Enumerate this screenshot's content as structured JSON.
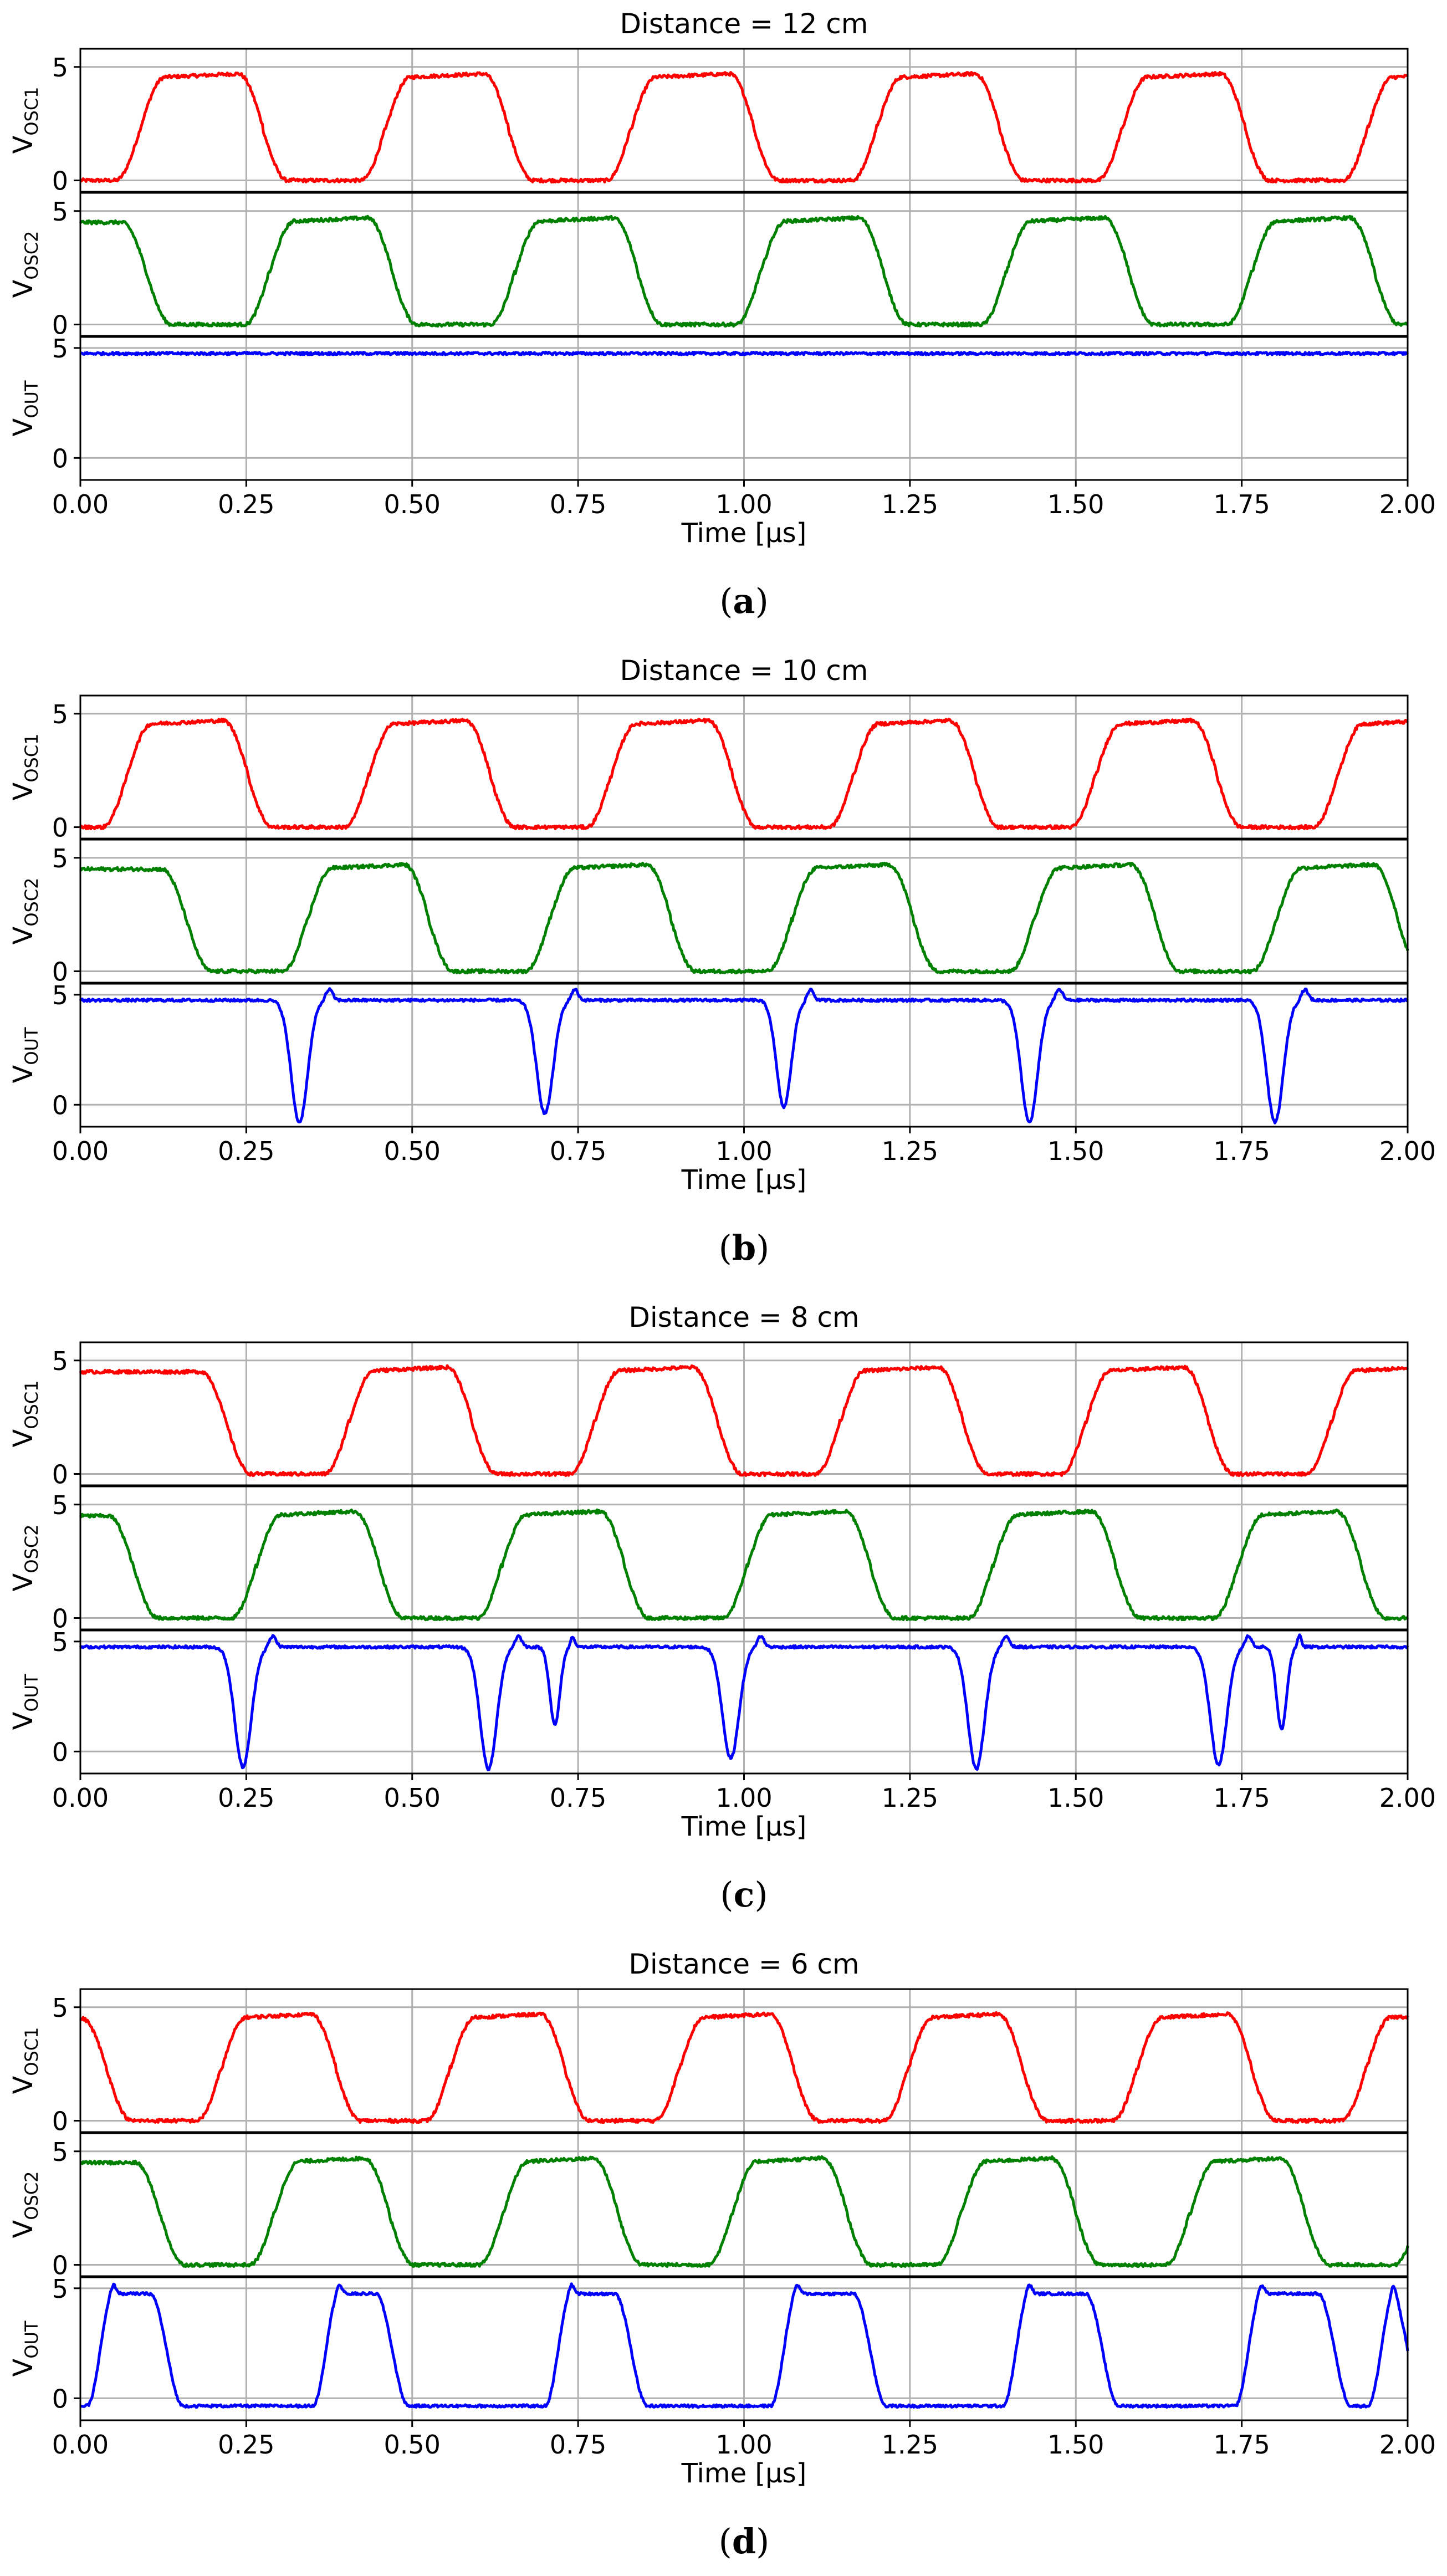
{
  "figure": {
    "panels": [
      {
        "caption_letter": "a",
        "title": "Distance = 12 cm",
        "xlabel": "Time [μs]",
        "x_ticks": [
          "0.00",
          "0.25",
          "0.50",
          "0.75",
          "1.00",
          "1.25",
          "1.50",
          "1.75",
          "2.00"
        ],
        "xlim": [
          0,
          2.0
        ],
        "subplots": [
          {
            "name": "VOSC1",
            "ylabel_main": "V",
            "ylabel_sub": "OSC1",
            "color": "#ff0000",
            "ylim": [
              -0.5,
              5.8
            ],
            "y_ticks": [
              "0",
              "5"
            ],
            "wave": {
              "type": "square",
              "period": 0.37,
              "transitions_first": 0.09,
              "start_level": "low"
            }
          },
          {
            "name": "VOSC2",
            "ylabel_main": "V",
            "ylabel_sub": "OSC2",
            "color": "#008000",
            "ylim": [
              -0.5,
              5.8
            ],
            "y_ticks": [
              "0",
              "5"
            ],
            "wave": {
              "type": "square",
              "period": 0.37,
              "transitions_first": 0.1,
              "start_level": "high"
            }
          },
          {
            "name": "VOUT",
            "ylabel_main": "V",
            "ylabel_sub": "OUT",
            "color": "#0000ff",
            "ylim": [
              -1.0,
              5.5
            ],
            "y_ticks": [
              "0",
              "5"
            ],
            "wave": {
              "type": "flat",
              "level": 4.75
            }
          }
        ]
      },
      {
        "caption_letter": "b",
        "title": "Distance = 10 cm",
        "xlabel": "Time [μs]",
        "x_ticks": [
          "0.00",
          "0.25",
          "0.50",
          "0.75",
          "1.00",
          "1.25",
          "1.50",
          "1.75",
          "2.00"
        ],
        "xlim": [
          0,
          2.0
        ],
        "subplots": [
          {
            "name": "VOSC1",
            "ylabel_main": "V",
            "ylabel_sub": "OSC1",
            "color": "#ff0000",
            "ylim": [
              -0.5,
              5.8
            ],
            "y_ticks": [
              "0",
              "5"
            ],
            "wave": {
              "type": "square",
              "period": 0.365,
              "transitions_first": 0.07,
              "start_level": "low"
            }
          },
          {
            "name": "VOSC2",
            "ylabel_main": "V",
            "ylabel_sub": "OSC2",
            "color": "#008000",
            "ylim": [
              -0.5,
              5.8
            ],
            "y_ticks": [
              "0",
              "5"
            ],
            "wave": {
              "type": "square",
              "period": 0.365,
              "transitions_first": 0.16,
              "start_level": "high"
            }
          },
          {
            "name": "VOUT",
            "ylabel_main": "V",
            "ylabel_sub": "OUT",
            "color": "#0000ff",
            "ylim": [
              -1.0,
              5.5
            ],
            "y_ticks": [
              "0",
              "5"
            ],
            "wave": {
              "type": "dips",
              "level": 4.75,
              "dips": [
                {
                  "t": 0.33,
                  "depth": -0.8,
                  "width": 0.05
                },
                {
                  "t": 0.7,
                  "depth": -0.4,
                  "width": 0.05
                },
                {
                  "t": 1.06,
                  "depth": -0.1,
                  "width": 0.045
                },
                {
                  "t": 1.43,
                  "depth": -0.8,
                  "width": 0.05
                },
                {
                  "t": 1.8,
                  "depth": -0.8,
                  "width": 0.05
                }
              ]
            }
          }
        ]
      },
      {
        "caption_letter": "c",
        "title": "Distance = 8 cm",
        "xlabel": "Time [μs]",
        "x_ticks": [
          "0.00",
          "0.25",
          "0.50",
          "0.75",
          "1.00",
          "1.25",
          "1.50",
          "1.75",
          "2.00"
        ],
        "xlim": [
          0,
          2.0
        ],
        "subplots": [
          {
            "name": "VOSC1",
            "ylabel_main": "V",
            "ylabel_sub": "OSC1",
            "color": "#ff0000",
            "ylim": [
              -0.5,
              5.8
            ],
            "y_ticks": [
              "0",
              "5"
            ],
            "wave": {
              "type": "square",
              "period": 0.37,
              "transitions_first": 0.22,
              "start_level": "high"
            }
          },
          {
            "name": "VOSC2",
            "ylabel_main": "V",
            "ylabel_sub": "OSC2",
            "color": "#008000",
            "ylim": [
              -0.5,
              5.8
            ],
            "y_ticks": [
              "0",
              "5"
            ],
            "wave": {
              "type": "square",
              "period": 0.37,
              "transitions_first": 0.08,
              "start_level": "high"
            }
          },
          {
            "name": "VOUT",
            "ylabel_main": "V",
            "ylabel_sub": "OUT",
            "color": "#0000ff",
            "ylim": [
              -1.0,
              5.5
            ],
            "y_ticks": [
              "0",
              "5"
            ],
            "wave": {
              "type": "dips",
              "level": 4.75,
              "dips": [
                {
                  "t": 0.245,
                  "depth": -0.7,
                  "width": 0.05
                },
                {
                  "t": 0.615,
                  "depth": -0.8,
                  "width": 0.05
                },
                {
                  "t": 0.715,
                  "depth": 1.2,
                  "width": 0.03
                },
                {
                  "t": 0.98,
                  "depth": -0.3,
                  "width": 0.05
                },
                {
                  "t": 1.35,
                  "depth": -0.8,
                  "width": 0.05
                },
                {
                  "t": 1.715,
                  "depth": -0.6,
                  "width": 0.05
                },
                {
                  "t": 1.81,
                  "depth": 1.0,
                  "width": 0.03
                }
              ]
            }
          }
        ]
      },
      {
        "caption_letter": "d",
        "title": "Distance = 6 cm",
        "xlabel": "Time [μs]",
        "x_ticks": [
          "0.00",
          "0.25",
          "0.50",
          "0.75",
          "1.00",
          "1.25",
          "1.50",
          "1.75",
          "2.00"
        ],
        "xlim": [
          0,
          2.0
        ],
        "subplots": [
          {
            "name": "VOSC1",
            "ylabel_main": "V",
            "ylabel_sub": "OSC1",
            "color": "#ff0000",
            "ylim": [
              -0.5,
              5.8
            ],
            "y_ticks": [
              "0",
              "5"
            ],
            "wave": {
              "type": "square",
              "period": 0.345,
              "transitions_first": 0.04,
              "start_level": "high"
            }
          },
          {
            "name": "VOSC2",
            "ylabel_main": "V",
            "ylabel_sub": "OSC2",
            "color": "#008000",
            "ylim": [
              -0.5,
              5.8
            ],
            "y_ticks": [
              "0",
              "5"
            ],
            "wave": {
              "type": "square",
              "period": 0.345,
              "transitions_first": 0.12,
              "start_level": "high"
            }
          },
          {
            "name": "VOUT",
            "ylabel_main": "V",
            "ylabel_sub": "OUT",
            "color": "#0000ff",
            "ylim": [
              -1.0,
              5.5
            ],
            "y_ticks": [
              "0",
              "5"
            ],
            "wave": {
              "type": "pulses",
              "high": 4.75,
              "low": -0.35,
              "pulses": [
                [
                  0.03,
                  0.13
                ],
                [
                  0.37,
                  0.47
                ],
                [
                  0.72,
                  0.83
                ],
                [
                  1.06,
                  1.19
                ],
                [
                  1.41,
                  1.54
                ],
                [
                  1.76,
                  1.89
                ],
                [
                  1.96,
                  2.0
                ]
              ]
            }
          }
        ]
      }
    ]
  },
  "chart_data": [
    {
      "type": "line",
      "title": "Distance = 12 cm",
      "xlabel": "Time [μs]",
      "xlim": [
        0,
        2.0
      ],
      "ylim": [
        -0.5,
        5.5
      ],
      "series": [
        {
          "name": "VOSC1",
          "shape": "square wave ~2.7 MHz, 0 to 4.7 V"
        },
        {
          "name": "VOSC2",
          "shape": "square wave ~2.7 MHz, 0 to 5 V, near antiphase"
        },
        {
          "name": "VOUT",
          "shape": "constant ~4.75 V"
        }
      ]
    },
    {
      "type": "line",
      "title": "Distance = 10 cm",
      "xlabel": "Time [μs]",
      "xlim": [
        0,
        2.0
      ],
      "ylim": [
        -0.5,
        5.5
      ],
      "series": [
        {
          "name": "VOSC1",
          "shape": "square wave 0 to 4.8 V"
        },
        {
          "name": "VOSC2",
          "shape": "square wave 0 to 5 V"
        },
        {
          "name": "VOUT",
          "dips_at_us": [
            0.33,
            0.7,
            1.06,
            1.43,
            1.8
          ]
        }
      ]
    },
    {
      "type": "line",
      "title": "Distance = 8 cm",
      "xlabel": "Time [μs]",
      "xlim": [
        0,
        2.0
      ],
      "ylim": [
        -0.5,
        5.5
      ],
      "series": [
        {
          "name": "VOSC1",
          "shape": "square wave 0 to 4.8 V"
        },
        {
          "name": "VOSC2",
          "shape": "square wave 0 to 5 V"
        },
        {
          "name": "VOUT",
          "dips_at_us": [
            0.245,
            0.615,
            0.715,
            0.98,
            1.35,
            1.715,
            1.81
          ]
        }
      ]
    },
    {
      "type": "line",
      "title": "Distance = 6 cm",
      "xlabel": "Time [μs]",
      "xlim": [
        0,
        2.0
      ],
      "ylim": [
        -0.5,
        5.5
      ],
      "series": [
        {
          "name": "VOSC1",
          "shape": "square wave 0 to 4.8 V"
        },
        {
          "name": "VOSC2",
          "shape": "square wave 0 to 5 V"
        },
        {
          "name": "VOUT",
          "shape": "pulse train 0 to 5 V, pulses at 0.03, 0.37, 0.72, 1.06, 1.41, 1.76 μs"
        }
      ]
    }
  ]
}
